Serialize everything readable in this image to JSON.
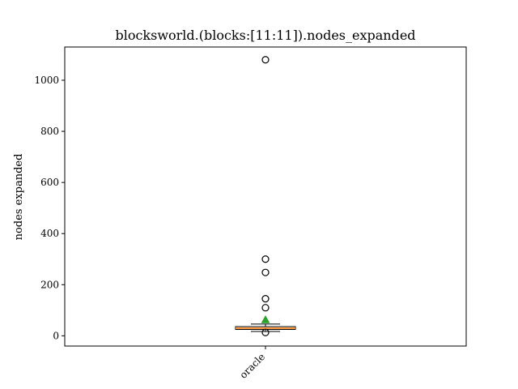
{
  "chart_data": {
    "type": "box",
    "title": "blocksworld.(blocks:[11:11]).nodes_expanded",
    "xlabel": "",
    "ylabel": "nodes expanded",
    "categories": [
      "oracle"
    ],
    "ylim": [
      -40,
      1130
    ],
    "yticks": [
      0,
      200,
      400,
      600,
      800,
      1000
    ],
    "grid": false,
    "boxes": [
      {
        "category": "oracle",
        "whisker_low": 17,
        "q1": 25,
        "median": 30,
        "q3": 36,
        "whisker_high": 46,
        "mean": 63,
        "outliers": [
          13,
          110,
          145,
          248,
          300,
          1080
        ]
      }
    ],
    "colors": {
      "median": "#ff7f0e",
      "mean": "#2ca02c",
      "box": "#000000"
    }
  }
}
